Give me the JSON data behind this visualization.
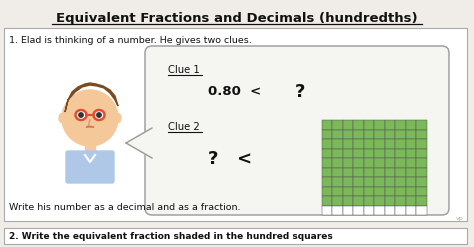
{
  "title": "Equivalent Fractions and Decimals (hundredths)",
  "q1_text": "1. Elad is thinking of a number. He gives two clues.",
  "clue1_label": "Clue 1",
  "clue2_label": "Clue 2",
  "bottom_text": "Write his number as a decimal and as a fraction.",
  "q2_text": "2. Write the equivalent fraction shaded in the hundred squares",
  "bg_color": "#f0ede8",
  "box_bg": "#ffffff",
  "border_color": "#aaaaaa",
  "title_color": "#111111",
  "text_color": "#111111",
  "grid_green": "#7ab85a",
  "grid_white": "#ffffff",
  "grid_line": "#555555",
  "grid_rows": 10,
  "grid_cols": 10,
  "grid_shaded_rows": 9,
  "bubble_bg": "#f5f5f2",
  "bubble_border": "#999999"
}
